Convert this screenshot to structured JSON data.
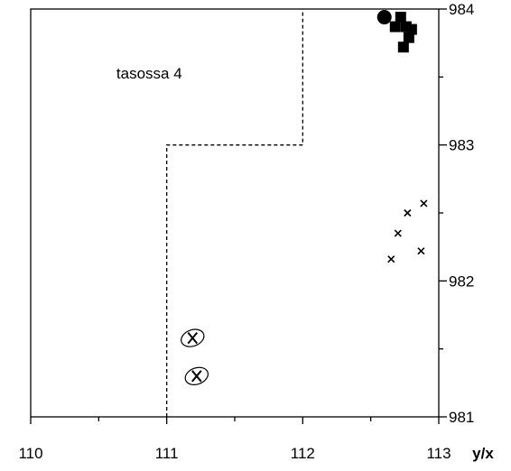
{
  "chart_data": {
    "type": "scatter",
    "x_axis": {
      "range": [
        110,
        113
      ],
      "major_ticks": [
        110,
        111,
        112,
        113
      ],
      "tick_labels": [
        "110",
        "111",
        "112",
        "113"
      ],
      "label": "y/x"
    },
    "y_axis": {
      "range": [
        981,
        984
      ],
      "major_ticks": [
        981,
        982,
        983,
        984
      ],
      "tick_labels": [
        "981",
        "982",
        "983",
        "984"
      ],
      "position": "right"
    },
    "grid": false,
    "annotations": [
      {
        "text": "tasossa 4",
        "x": 110.63,
        "y": 983.49
      }
    ],
    "boundary": [
      [
        111.0,
        981.0
      ],
      [
        111.0,
        983.0
      ],
      [
        112.0,
        983.0
      ],
      [
        112.0,
        984.0
      ]
    ],
    "series": [
      {
        "marker": "circle",
        "points": [
          [
            112.6,
            983.94
          ]
        ]
      },
      {
        "marker": "square",
        "points": [
          [
            112.72,
            983.94
          ],
          [
            112.68,
            983.87
          ],
          [
            112.76,
            983.87
          ],
          [
            112.8,
            983.85
          ],
          [
            112.78,
            983.79
          ],
          [
            112.74,
            983.72
          ]
        ]
      },
      {
        "marker": "cross",
        "points": [
          [
            112.89,
            982.57
          ],
          [
            112.77,
            982.5
          ],
          [
            112.7,
            982.35
          ],
          [
            112.87,
            982.22
          ],
          [
            112.65,
            982.16
          ]
        ]
      },
      {
        "marker": "circled-cross",
        "points": [
          [
            111.19,
            981.58
          ],
          [
            111.22,
            981.3
          ]
        ]
      }
    ]
  }
}
